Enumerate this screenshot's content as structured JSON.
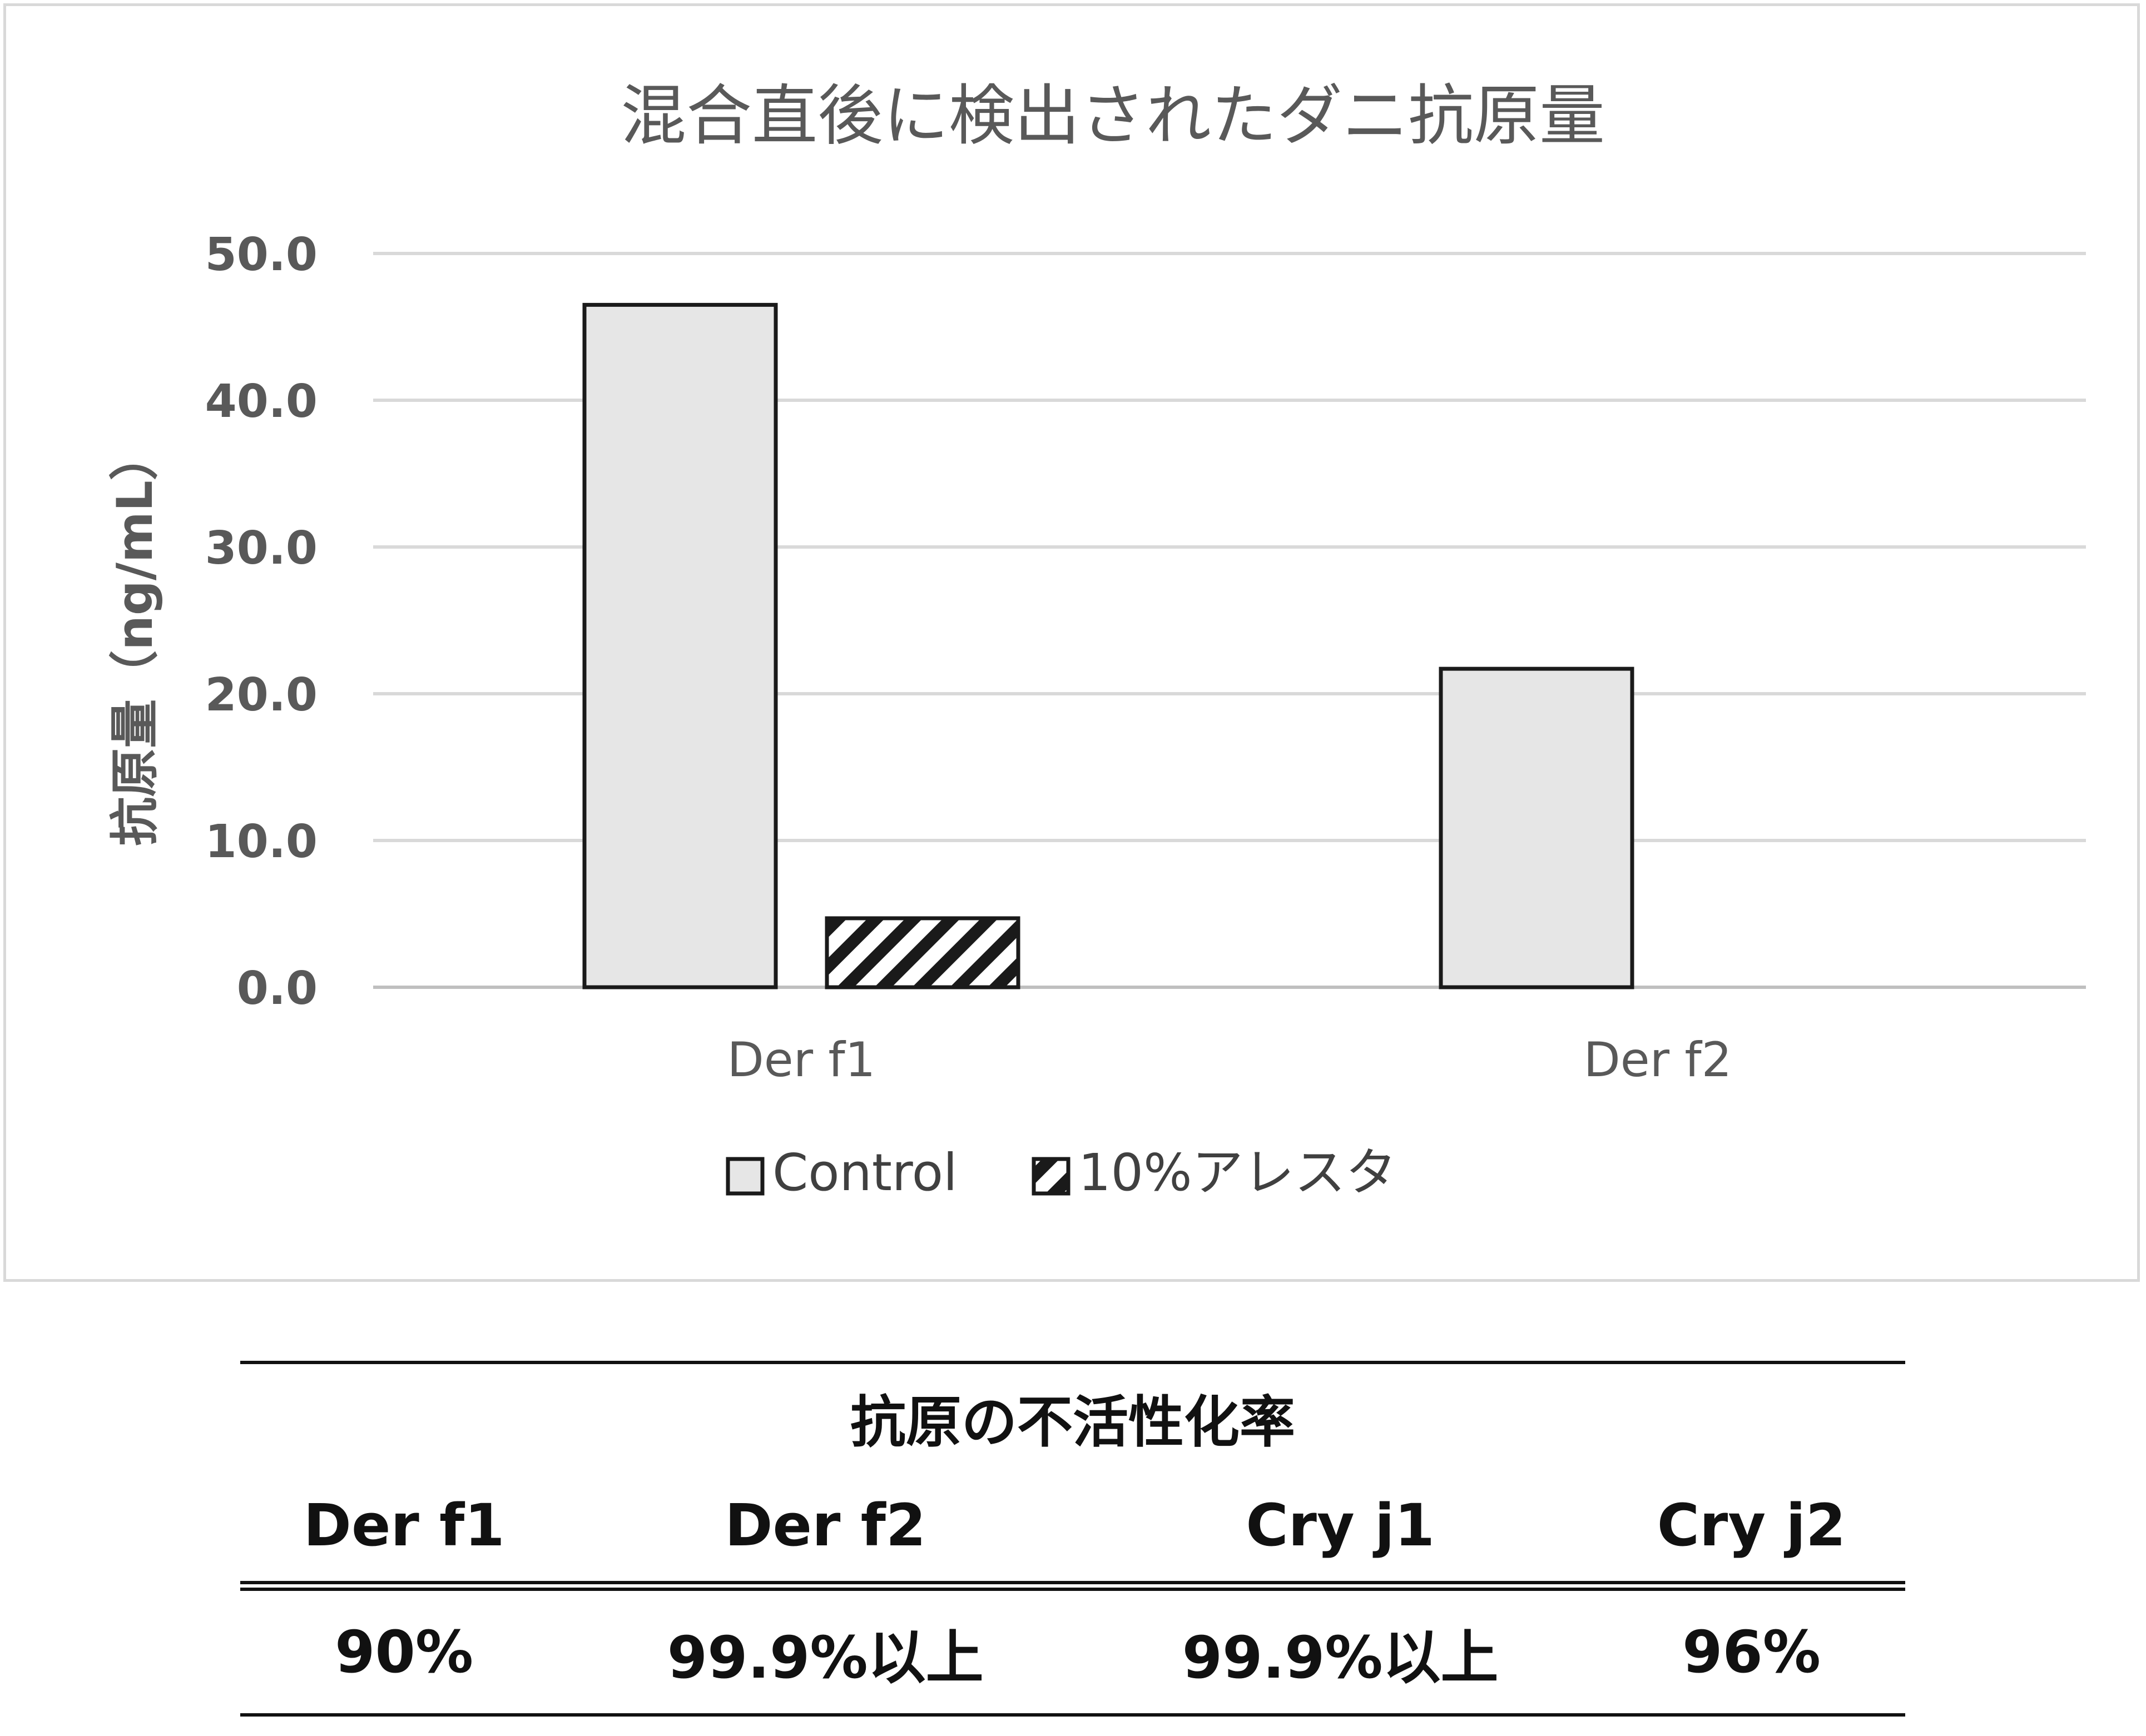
{
  "chart_data": {
    "type": "bar",
    "title": "混合直後に検出されたダニ抗原量",
    "ylabel": "抗原量（ng/mL）",
    "xlabel": "",
    "categories": [
      "Der f1",
      "Der f2"
    ],
    "series": [
      {
        "name": "Control",
        "values": [
          46.5,
          21.7
        ],
        "fill": "#e6e6e6",
        "pattern": "solid"
      },
      {
        "name": "10%アレスタ",
        "values": [
          4.7,
          null
        ],
        "fill": "#ffffff",
        "pattern": "hatch"
      }
    ],
    "ylim": [
      0,
      50
    ],
    "yticks": [
      "0.0",
      "10.0",
      "20.0",
      "30.0",
      "40.0",
      "50.0"
    ],
    "grid": true,
    "legend": "bottom-center",
    "colors": {
      "bar_stroke": "#1a1a1a",
      "grid": "#d9d9d9",
      "axis": "#bfbfbf"
    }
  },
  "table": {
    "caption": "抗原の不活性化率",
    "headers": [
      "Der f1",
      "Der f2",
      "Cry j1",
      "Cry j2"
    ],
    "values": [
      "90%",
      "99.9%以上",
      "99.9%以上",
      "96%"
    ]
  }
}
